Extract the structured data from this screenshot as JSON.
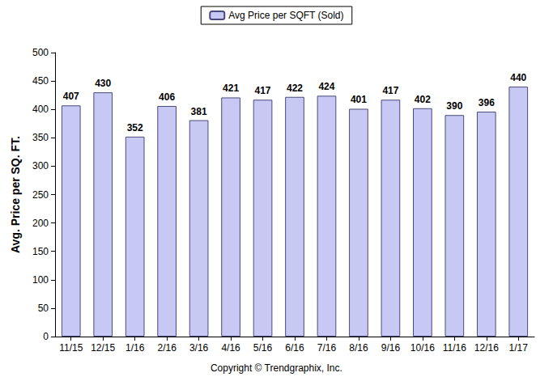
{
  "chart_data": {
    "type": "bar",
    "categories": [
      "11/15",
      "12/15",
      "1/16",
      "2/16",
      "3/16",
      "4/16",
      "5/16",
      "6/16",
      "7/16",
      "8/16",
      "9/16",
      "10/16",
      "11/16",
      "12/16",
      "1/17"
    ],
    "series": [
      {
        "name": "Avg Price per SQFT (Sold)",
        "color": "#c8c8f4",
        "values": [
          407,
          430,
          352,
          406,
          381,
          421,
          417,
          422,
          424,
          401,
          417,
          402,
          390,
          396,
          440
        ]
      }
    ],
    "ylabel": "Avg. Price per SQ. FT.",
    "annotation": "Copyright © Trendgraphix, Inc.",
    "ylim": [
      0,
      500
    ],
    "yticks": [
      0,
      50,
      100,
      150,
      200,
      250,
      300,
      350,
      400,
      450,
      500
    ],
    "grid": false,
    "legend": "top",
    "data_labels": true
  }
}
